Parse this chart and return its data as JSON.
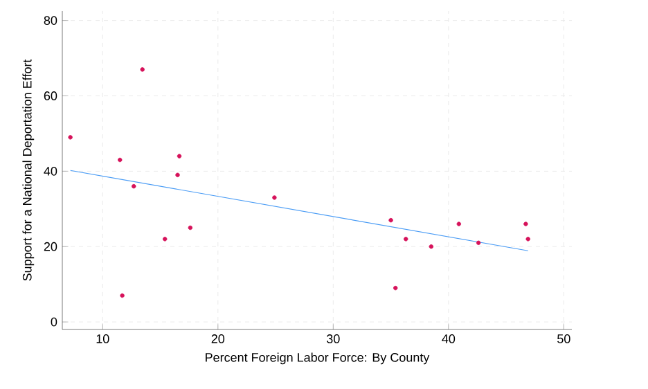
{
  "chart_data": {
    "type": "scatter",
    "xlabel": "Percent Foreign Labor Force: By County",
    "ylabel": "Support for a National Deportation Effort",
    "xlim": [
      6.5,
      50.7
    ],
    "ylim": [
      -2,
      82.5
    ],
    "xticks": [
      10,
      20,
      30,
      40,
      50
    ],
    "yticks": [
      0,
      20,
      40,
      60,
      80
    ],
    "grid": true,
    "marker": "circle",
    "series": [
      {
        "type": "scatter",
        "color": "#d6125a",
        "x": [
          7.2,
          11.5,
          13.45,
          12.7,
          11.7,
          15.4,
          16.65,
          16.5,
          17.6,
          24.9,
          35.0,
          36.3,
          35.4,
          38.5,
          40.9,
          42.6,
          46.7,
          46.9
        ],
        "values": [
          49,
          43,
          67,
          36,
          7,
          22,
          44,
          39,
          25,
          33,
          27,
          22,
          9,
          20,
          26,
          21,
          26,
          22
        ]
      },
      {
        "type": "line",
        "marker": "none",
        "color": "#4a9cf5",
        "x": [
          7.2,
          46.9
        ],
        "values": [
          40.2,
          18.9
        ]
      }
    ]
  }
}
